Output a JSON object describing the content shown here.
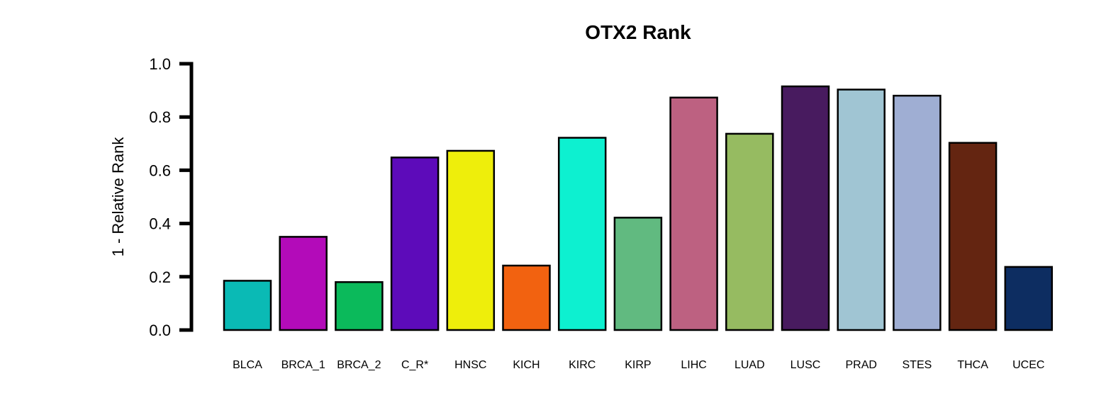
{
  "chart_data": {
    "type": "bar",
    "title": "OTX2 Rank",
    "xlabel": "",
    "ylabel": "1 - Relative Rank",
    "ylim": [
      0,
      1
    ],
    "yticks": [
      0.0,
      0.2,
      0.4,
      0.6,
      0.8,
      1.0
    ],
    "ytick_labels": [
      "0.0",
      "0.2",
      "0.4",
      "0.6",
      "0.8",
      "1.0"
    ],
    "grid": false,
    "categories": [
      "BLCA",
      "BRCA_1",
      "BRCA_2",
      "C_R*",
      "HNSC",
      "KICH",
      "KIRC",
      "KIRP",
      "LIHC",
      "LUAD",
      "LUSC",
      "PRAD",
      "STES",
      "THCA",
      "UCEC"
    ],
    "values": [
      0.185,
      0.35,
      0.18,
      0.648,
      0.673,
      0.242,
      0.722,
      0.422,
      0.873,
      0.737,
      0.915,
      0.903,
      0.88,
      0.703,
      0.237
    ],
    "colors": [
      "#0ABAB5",
      "#B30BB9",
      "#0BBA5B",
      "#5D0BBA",
      "#EEEE0B",
      "#F26210",
      "#0DF0D0",
      "#61BA80",
      "#BD6181",
      "#96BB61",
      "#481B5F",
      "#A0C5D3",
      "#9FAED3",
      "#642511",
      "#0D2D61"
    ]
  }
}
